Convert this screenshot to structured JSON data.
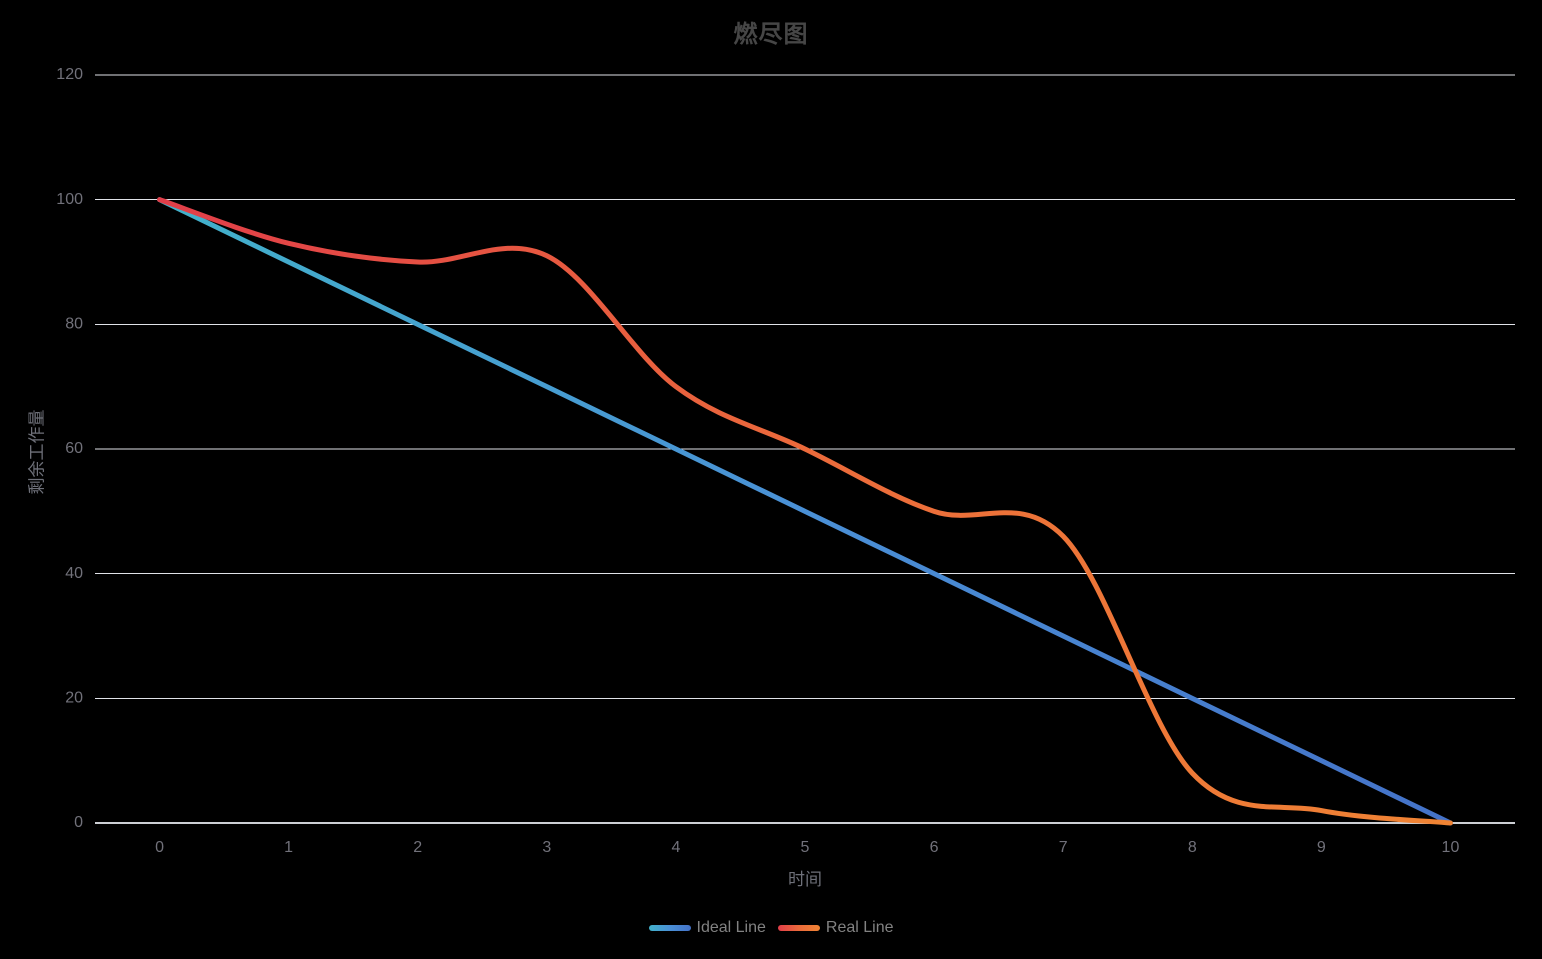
{
  "chart_data": {
    "type": "line",
    "title": "燃尽图",
    "categories": [
      "0",
      "1",
      "2",
      "3",
      "4",
      "5",
      "6",
      "7",
      "8",
      "9",
      "10"
    ],
    "series": [
      {
        "name": "Ideal Line",
        "values": [
          100,
          90,
          80,
          70,
          60,
          50,
          40,
          30,
          20,
          10,
          0
        ],
        "gradient": [
          "#42b1ca",
          "#4a90d6",
          "#4472c8"
        ]
      },
      {
        "name": "Real Line",
        "values": [
          100,
          93,
          90,
          91,
          70,
          60,
          50,
          46,
          8,
          2,
          0
        ],
        "gradient": [
          "#e13e49",
          "#eb6a3b",
          "#f08434"
        ]
      }
    ],
    "xlabel": "时间",
    "ylabel": "剩余工作量",
    "ylim": [
      0,
      120
    ],
    "ytick_labels": [
      "0",
      "20",
      "40",
      "60",
      "80",
      "100",
      "120"
    ],
    "grid": true,
    "smooth": true,
    "legend_position": "bottom"
  },
  "colors": {
    "background": "#000000",
    "title_text": "#464646",
    "tick_label": "#71717a",
    "axis_title": "#6e7079",
    "legend_text": "#828282",
    "gridline": "#e0e2e8",
    "axis_line": "#cccfd4"
  }
}
